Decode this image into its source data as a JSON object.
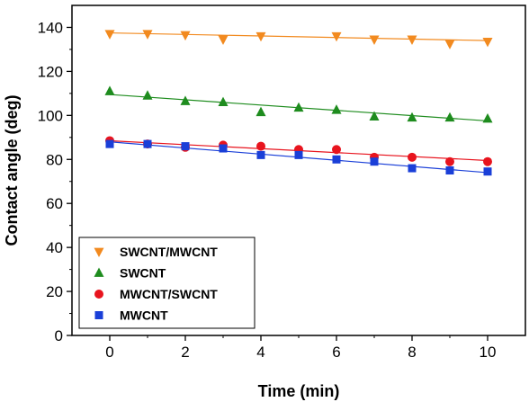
{
  "chart_data": {
    "type": "scatter",
    "title": "",
    "xlabel": "Time (min)",
    "ylabel": "Contact angle (deg)",
    "xlim": [
      -1,
      11
    ],
    "ylim": [
      0,
      150
    ],
    "x_ticks": [
      0,
      2,
      4,
      6,
      8,
      10
    ],
    "y_ticks": [
      0,
      20,
      40,
      60,
      80,
      100,
      120,
      140
    ],
    "grid": false,
    "legend_position": "bottom-left",
    "series": [
      {
        "name": "SWCNT/MWCNT",
        "marker": "triangle-down",
        "color": "#f28a1f",
        "x": [
          0,
          1,
          2,
          3,
          4,
          6,
          7,
          8,
          9,
          10
        ],
        "values": [
          137,
          137,
          136.5,
          134.5,
          136,
          136,
          134.5,
          134.5,
          132.5,
          133.5
        ],
        "trend": [
          137.5,
          134
        ]
      },
      {
        "name": "SWCNT",
        "marker": "triangle-up",
        "color": "#1e8c1e",
        "x": [
          0,
          1,
          2,
          3,
          4,
          5,
          6,
          7,
          8,
          9,
          10
        ],
        "values": [
          111,
          109,
          106.5,
          106,
          101.5,
          103.5,
          102.5,
          99.5,
          99,
          99,
          98.5
        ],
        "trend": [
          109.5,
          97.5
        ]
      },
      {
        "name": "MWCNT/SWCNT",
        "marker": "circle",
        "color": "#e8141e",
        "x": [
          0,
          1,
          2,
          3,
          4,
          5,
          6,
          7,
          8,
          9,
          10
        ],
        "values": [
          88.5,
          87,
          85.5,
          86.5,
          86,
          84.5,
          84.5,
          81,
          81,
          79,
          79
        ],
        "trend": [
          88.5,
          79.5
        ]
      },
      {
        "name": "MWCNT",
        "marker": "square",
        "color": "#1a3fd8",
        "x": [
          0,
          1,
          2,
          3,
          4,
          5,
          6,
          7,
          8,
          9,
          10
        ],
        "values": [
          87,
          87,
          86,
          85,
          82,
          82,
          80,
          79,
          76,
          75,
          74.5
        ],
        "trend": [
          88,
          74
        ]
      }
    ]
  }
}
